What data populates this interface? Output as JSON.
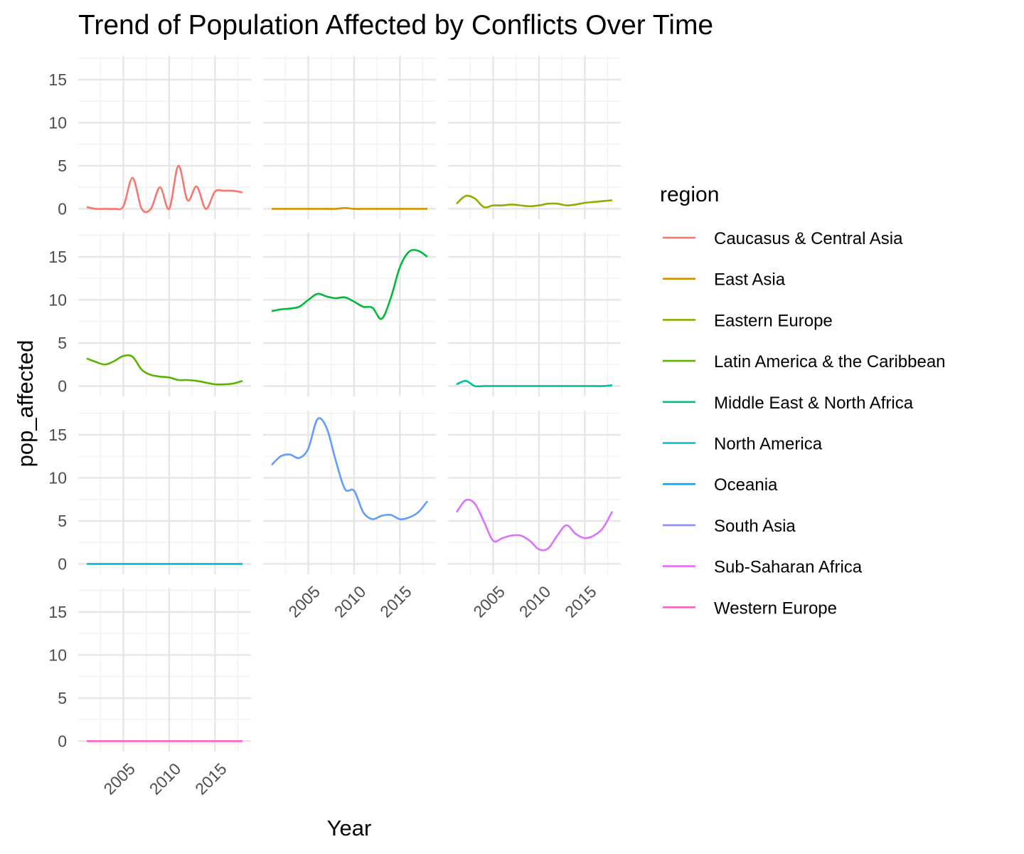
{
  "chart_data": {
    "type": "line",
    "title": "Trend of Population Affected by Conflicts Over Time",
    "xlabel": "Year",
    "ylabel": "pop_affected",
    "legend_title": "region",
    "legend_position": "right",
    "grid": true,
    "facets": "3 columns, free x scales per panel, shared y scale",
    "xlim": [
      2001,
      2018
    ],
    "ylim": [
      0,
      17.8
    ],
    "x_ticks": [
      "2005",
      "2010",
      "2015"
    ],
    "y_ticks": [
      "0",
      "5",
      "10",
      "15"
    ],
    "x": [
      2001,
      2002,
      2003,
      2004,
      2005,
      2006,
      2007,
      2008,
      2009,
      2010,
      2011,
      2012,
      2013,
      2014,
      2015,
      2016,
      2017,
      2018
    ],
    "series": [
      {
        "name": "Caucasus & Central Asia",
        "color": "#F8766D",
        "values": [
          0.2,
          0.0,
          0.0,
          0.0,
          0.3,
          3.6,
          0.0,
          0.0,
          2.5,
          0.0,
          5.0,
          1.0,
          2.6,
          0.0,
          2.0,
          2.1,
          2.1,
          1.9
        ]
      },
      {
        "name": "East Asia",
        "color": "#D39200",
        "values": [
          0.0,
          0.0,
          0.0,
          0.0,
          0.0,
          0.0,
          0.0,
          0.0,
          0.1,
          0.0,
          0.0,
          0.0,
          0.0,
          0.0,
          0.0,
          0.0,
          0.0,
          0.0
        ]
      },
      {
        "name": "Eastern Europe",
        "color": "#93AA00",
        "values": [
          0.6,
          1.5,
          1.2,
          0.2,
          0.4,
          0.4,
          0.5,
          0.4,
          0.3,
          0.4,
          0.6,
          0.6,
          0.4,
          0.5,
          0.7,
          0.8,
          0.9,
          1.0
        ]
      },
      {
        "name": "Latin America & the Caribbean",
        "color": "#5BB300",
        "values": [
          3.2,
          2.8,
          2.5,
          2.9,
          3.5,
          3.4,
          1.9,
          1.3,
          1.1,
          1.0,
          0.7,
          0.7,
          0.6,
          0.4,
          0.2,
          0.2,
          0.3,
          0.6
        ]
      },
      {
        "name": "Middle East & North Africa",
        "color": "#00BA38",
        "values": [
          8.7,
          8.9,
          9.0,
          9.2,
          10.0,
          10.7,
          10.4,
          10.2,
          10.3,
          9.8,
          9.2,
          9.1,
          7.8,
          10.2,
          13.8,
          15.6,
          15.7,
          15.0
        ]
      },
      {
        "name": "North America",
        "color": "#00C19F",
        "values": [
          0.2,
          0.6,
          0.0,
          0.0,
          0.0,
          0.0,
          0.0,
          0.0,
          0.0,
          0.0,
          0.0,
          0.0,
          0.0,
          0.0,
          0.0,
          0.0,
          0.0,
          0.1
        ]
      },
      {
        "name": "Oceania",
        "color": "#00B9E3",
        "values": [
          0.0,
          0.0,
          0.0,
          0.0,
          0.0,
          0.0,
          0.0,
          0.0,
          0.0,
          0.0,
          0.0,
          0.0,
          0.0,
          0.0,
          0.0,
          0.0,
          0.0,
          0.0
        ]
      },
      {
        "name": "South Asia",
        "color": "#619CFF",
        "values": [
          11.5,
          12.5,
          12.7,
          12.3,
          13.4,
          16.8,
          15.8,
          12.0,
          8.7,
          8.5,
          6.0,
          5.2,
          5.6,
          5.7,
          5.2,
          5.4,
          6.0,
          7.3
        ]
      },
      {
        "name": "Sub-Saharan Africa",
        "color": "#DB72FB",
        "values": [
          6.0,
          7.4,
          7.0,
          4.9,
          2.7,
          3.0,
          3.3,
          3.3,
          2.7,
          1.7,
          1.8,
          3.3,
          4.5,
          3.5,
          3.0,
          3.3,
          4.2,
          6.1
        ]
      },
      {
        "name": "Western Europe",
        "color": "#FF61C3",
        "values": [
          0.0,
          0.0,
          0.0,
          0.0,
          0.0,
          0.0,
          0.0,
          0.0,
          0.0,
          0.0,
          0.0,
          0.0,
          0.0,
          0.0,
          0.0,
          0.0,
          0.0,
          0.0
        ]
      }
    ],
    "legend_colors_as_drawn": [
      "#F8766D",
      "#D39200",
      "#93AA00",
      "#5BB300",
      "#00C08B",
      "#00BFC4",
      "#00A5FF",
      "#8E8CFF",
      "#E36EF6",
      "#FF61C3"
    ]
  }
}
